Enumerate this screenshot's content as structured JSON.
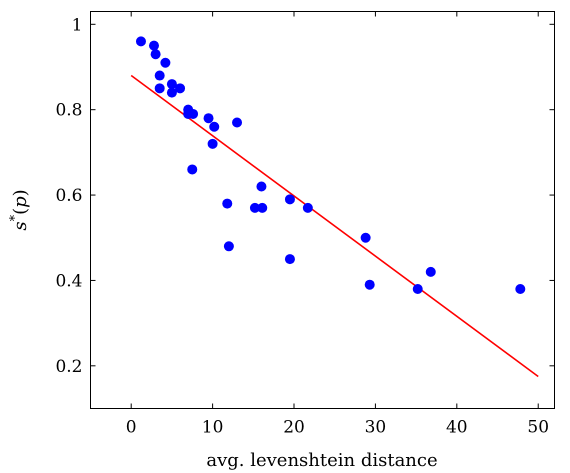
{
  "chart_data": {
    "type": "scatter",
    "xlabel": "avg. levenshtein distance",
    "ylabel": "s*(p)",
    "xlim": [
      -5,
      52
    ],
    "ylim": [
      0.1,
      1.03
    ],
    "xticks": [
      0,
      10,
      20,
      30,
      40,
      50
    ],
    "yticks": [
      0.2,
      0.4,
      0.6,
      0.8,
      1
    ],
    "grid": false,
    "marker_color": "#0000ff",
    "line_color": "#ff0000",
    "points": [
      {
        "x": 1.2,
        "y": 0.96
      },
      {
        "x": 2.8,
        "y": 0.95
      },
      {
        "x": 3.0,
        "y": 0.93
      },
      {
        "x": 4.2,
        "y": 0.91
      },
      {
        "x": 3.5,
        "y": 0.88
      },
      {
        "x": 3.5,
        "y": 0.85
      },
      {
        "x": 5.0,
        "y": 0.86
      },
      {
        "x": 5.0,
        "y": 0.84
      },
      {
        "x": 6.0,
        "y": 0.85
      },
      {
        "x": 7.0,
        "y": 0.8
      },
      {
        "x": 7.0,
        "y": 0.79
      },
      {
        "x": 7.6,
        "y": 0.79
      },
      {
        "x": 9.5,
        "y": 0.78
      },
      {
        "x": 10.2,
        "y": 0.76
      },
      {
        "x": 13.0,
        "y": 0.77
      },
      {
        "x": 10.0,
        "y": 0.72
      },
      {
        "x": 7.5,
        "y": 0.66
      },
      {
        "x": 16.0,
        "y": 0.62
      },
      {
        "x": 19.5,
        "y": 0.59
      },
      {
        "x": 11.8,
        "y": 0.58
      },
      {
        "x": 15.2,
        "y": 0.57
      },
      {
        "x": 16.1,
        "y": 0.57
      },
      {
        "x": 21.7,
        "y": 0.57
      },
      {
        "x": 28.8,
        "y": 0.5
      },
      {
        "x": 12.0,
        "y": 0.48
      },
      {
        "x": 19.5,
        "y": 0.45
      },
      {
        "x": 36.8,
        "y": 0.42
      },
      {
        "x": 29.3,
        "y": 0.39
      },
      {
        "x": 35.2,
        "y": 0.38
      },
      {
        "x": 47.8,
        "y": 0.38
      }
    ],
    "trend_line": {
      "x": [
        0,
        50
      ],
      "y": [
        0.88,
        0.175
      ]
    }
  }
}
